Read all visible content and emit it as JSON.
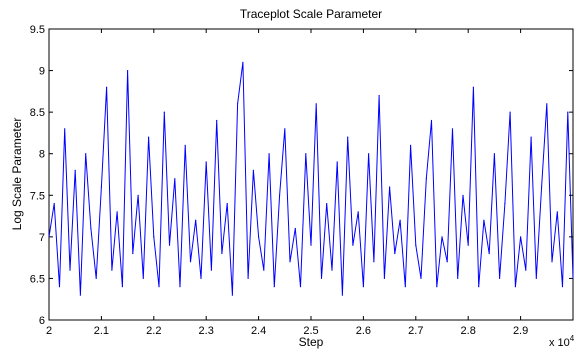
{
  "chart_data": {
    "type": "line",
    "title": "Traceplot Scale Parameter",
    "xlabel": "Step",
    "ylabel": "Log Scale Parameter",
    "x_multiplier_label": "x 10",
    "x_multiplier_exponent": "4",
    "xlim": [
      2.0,
      3.0
    ],
    "ylim": [
      6.0,
      9.5
    ],
    "x_ticks": [
      "2",
      "2.1",
      "2.2",
      "2.3",
      "2.4",
      "2.5",
      "2.6",
      "2.7",
      "2.8",
      "2.9"
    ],
    "y_ticks": [
      "6",
      "6.5",
      "7",
      "7.5",
      "8",
      "8.5",
      "9",
      "9.5"
    ],
    "grid": false,
    "series": [
      {
        "color": "#0000ff",
        "x": [
          2.0,
          2.01,
          2.02,
          2.03,
          2.04,
          2.05,
          2.06,
          2.07,
          2.08,
          2.09,
          2.1,
          2.11,
          2.12,
          2.13,
          2.14,
          2.15,
          2.16,
          2.17,
          2.18,
          2.19,
          2.2,
          2.21,
          2.22,
          2.23,
          2.24,
          2.25,
          2.26,
          2.27,
          2.28,
          2.29,
          2.3,
          2.31,
          2.32,
          2.33,
          2.34,
          2.35,
          2.36,
          2.37,
          2.38,
          2.39,
          2.4,
          2.41,
          2.42,
          2.43,
          2.44,
          2.45,
          2.46,
          2.47,
          2.48,
          2.49,
          2.5,
          2.51,
          2.52,
          2.53,
          2.54,
          2.55,
          2.56,
          2.57,
          2.58,
          2.59,
          2.6,
          2.61,
          2.62,
          2.63,
          2.64,
          2.65,
          2.66,
          2.67,
          2.68,
          2.69,
          2.7,
          2.71,
          2.72,
          2.73,
          2.74,
          2.75,
          2.76,
          2.77,
          2.78,
          2.79,
          2.8,
          2.81,
          2.82,
          2.83,
          2.84,
          2.85,
          2.86,
          2.87,
          2.88,
          2.89,
          2.9,
          2.91,
          2.92,
          2.93,
          2.94,
          2.95,
          2.96,
          2.97,
          2.98,
          2.99,
          3.0
        ],
        "y": [
          7.0,
          7.4,
          6.4,
          8.3,
          6.6,
          7.8,
          6.3,
          8.0,
          7.1,
          6.5,
          7.6,
          8.8,
          6.6,
          7.3,
          6.4,
          9.0,
          6.8,
          7.5,
          6.5,
          8.2,
          7.0,
          6.4,
          8.5,
          6.9,
          7.7,
          6.4,
          8.1,
          6.7,
          7.2,
          6.5,
          7.9,
          6.6,
          8.4,
          6.8,
          7.4,
          6.3,
          8.6,
          9.1,
          6.5,
          7.8,
          7.0,
          6.6,
          8.0,
          6.4,
          7.5,
          8.3,
          6.7,
          7.1,
          6.4,
          8.0,
          6.9,
          8.6,
          6.5,
          7.4,
          6.6,
          7.9,
          6.3,
          8.2,
          6.9,
          7.3,
          6.4,
          8.0,
          6.7,
          8.7,
          6.5,
          7.6,
          6.8,
          7.2,
          6.4,
          8.1,
          6.9,
          6.5,
          7.7,
          8.4,
          6.4,
          7.0,
          6.7,
          8.3,
          6.5,
          7.5,
          6.9,
          8.8,
          6.4,
          7.2,
          6.8,
          8.0,
          6.5,
          7.4,
          8.5,
          6.4,
          7.0,
          6.6,
          8.2,
          6.5,
          7.6,
          8.6,
          6.7,
          7.3,
          6.4,
          8.5,
          6.5
        ]
      }
    ]
  }
}
